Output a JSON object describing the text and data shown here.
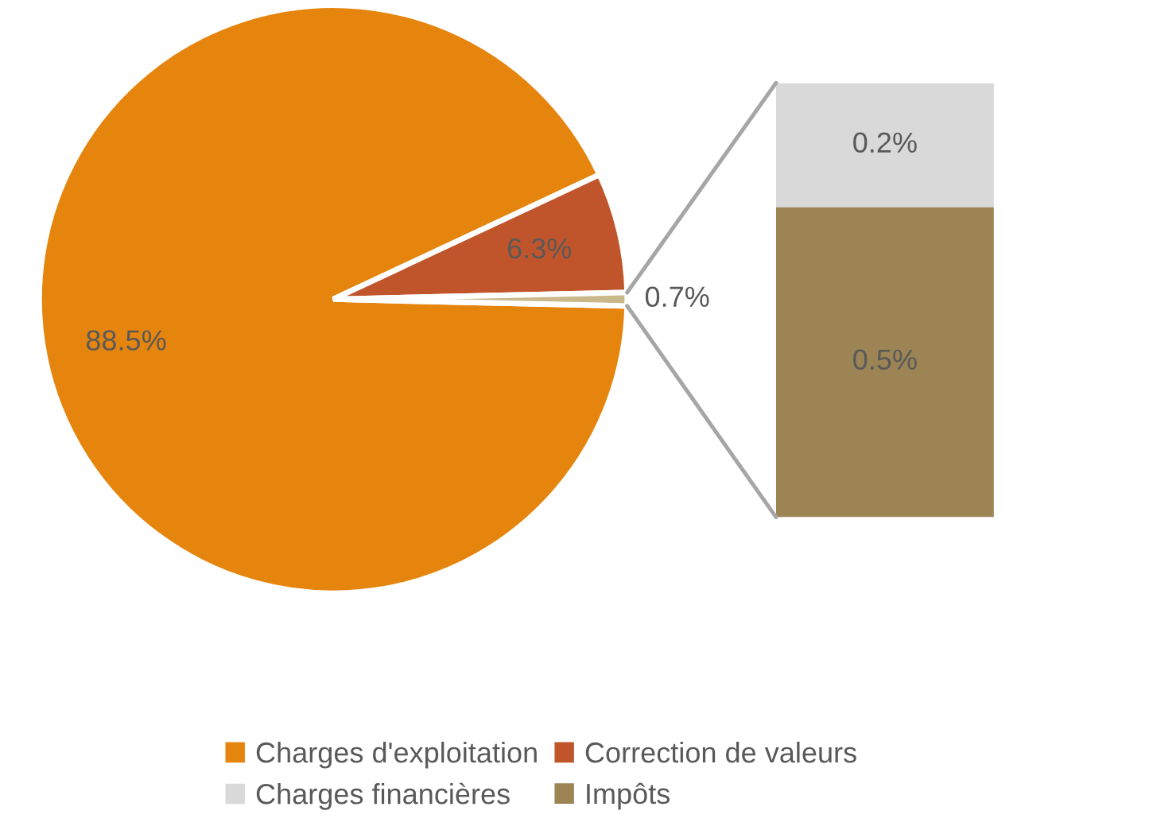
{
  "chart_data": [
    {
      "type": "pie",
      "categories": [
        "Charges d'exploitation",
        "Correction de valeurs",
        null
      ],
      "values": [
        88.5,
        6.3,
        0.7
      ],
      "colors": [
        "#e6850e",
        "#c0552b",
        "#c9b98a"
      ],
      "value_labels": [
        "88.5%",
        "6.3%",
        "0.7%"
      ],
      "legend": "bottom"
    },
    {
      "type": "bar",
      "stacked": true,
      "categories": [
        null
      ],
      "series": [
        {
          "name": "Impôts",
          "color": "#9c8455",
          "values": [
            0.5
          ],
          "value_labels": [
            "0.5%"
          ]
        },
        {
          "name": "Charges financières",
          "color": "#d9d9d9",
          "values": [
            0.2
          ],
          "value_labels": [
            "0.2%"
          ]
        }
      ],
      "ylim": [
        0,
        0.7
      ],
      "legend": "bottom"
    }
  ]
}
